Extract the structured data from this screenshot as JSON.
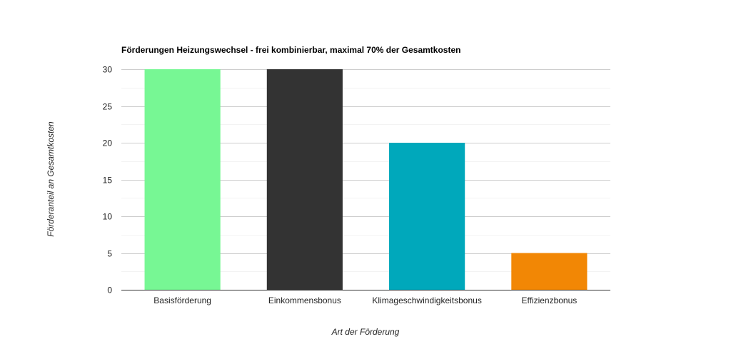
{
  "chart_data": {
    "type": "bar",
    "title": "Förderungen Heizungswechsel - frei kombinierbar, maximal 70% der Gesamtkosten",
    "xlabel": "Art der Förderung",
    "ylabel": "Förderanteil an Gesamtkosten",
    "categories": [
      "Basisförderung",
      "Einkommensbonus",
      "Klimageschwindigkeitsbonus",
      "Effizienzbonus"
    ],
    "values": [
      30,
      30,
      20,
      5
    ],
    "colors": [
      "#77f794",
      "#333333",
      "#00a8bb",
      "#f28705"
    ],
    "ylim": [
      0,
      30
    ],
    "yticks": [
      0,
      5,
      10,
      15,
      20,
      25,
      30
    ],
    "grid": true,
    "minor_grid": true,
    "legend": "none"
  }
}
